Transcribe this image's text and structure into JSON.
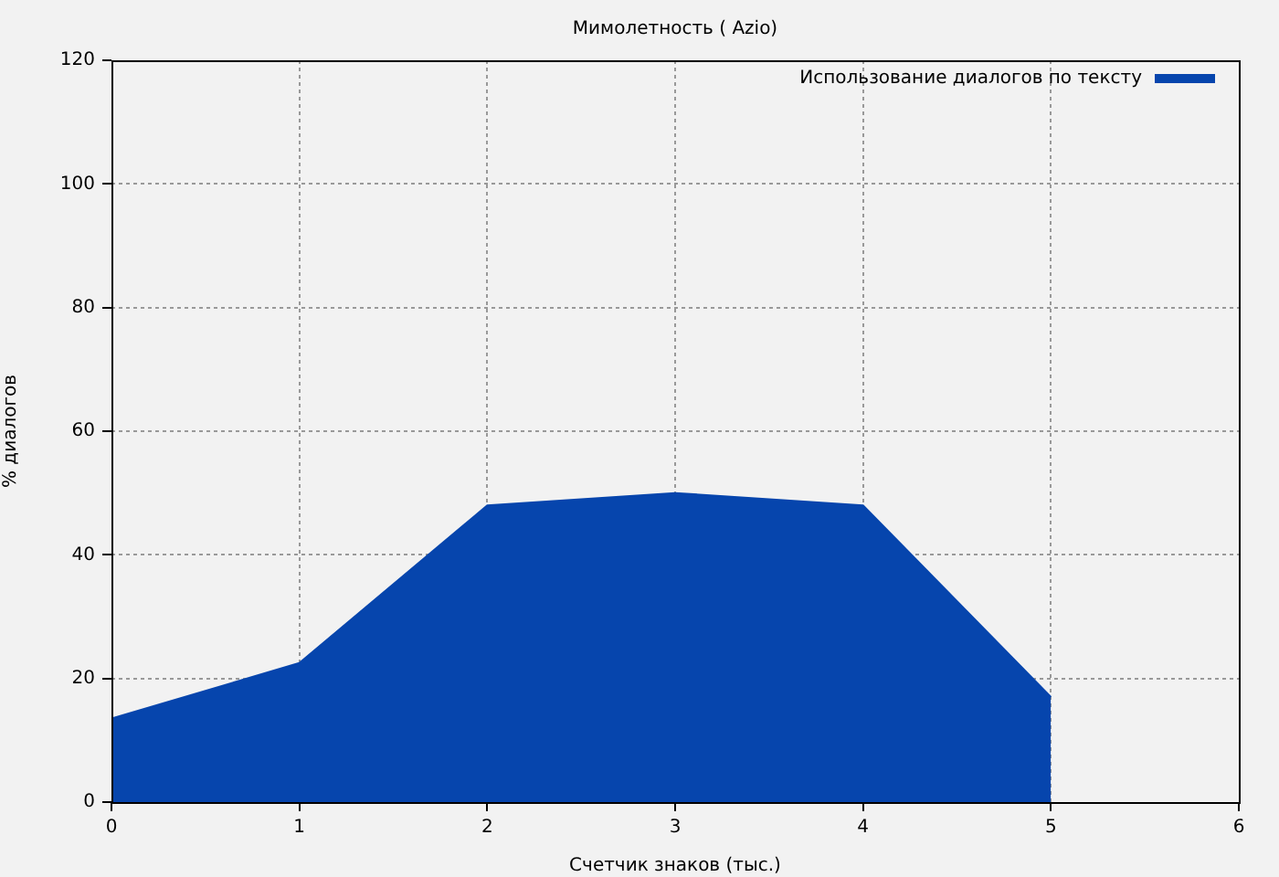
{
  "chart_data": {
    "type": "area",
    "title": "Мимолетность ( Azio)",
    "xlabel": "Счетчик знаков (тыс.)",
    "ylabel": "% диалогов",
    "x": [
      0,
      1,
      2,
      3,
      4,
      5
    ],
    "series": [
      {
        "name": "Использование диалогов по тексту",
        "color": "#0645ad",
        "values": [
          13.5,
          22.5,
          48,
          50,
          48,
          17
        ]
      }
    ],
    "xlim": [
      0,
      6
    ],
    "xticks": [
      0,
      1,
      2,
      3,
      4,
      5,
      6
    ],
    "ylim": [
      0,
      120
    ],
    "yticks": [
      0,
      20,
      40,
      60,
      80,
      100,
      120
    ],
    "grid": true,
    "legend": "top right"
  }
}
